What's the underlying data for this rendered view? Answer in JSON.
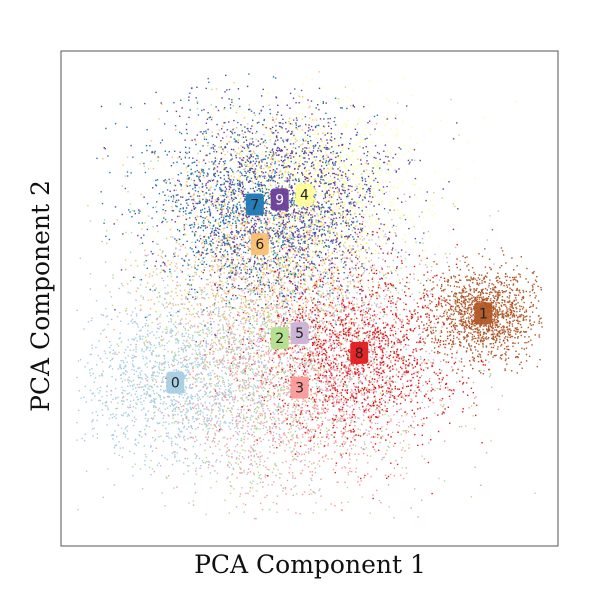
{
  "chart_data": {
    "type": "scatter",
    "title": "",
    "xlabel": "PCA Component 1",
    "ylabel": "PCA Component 2",
    "xlim": [
      0,
      1
    ],
    "ylim": [
      0,
      1
    ],
    "xticks": [],
    "yticks": [],
    "grid": false,
    "legend": "none",
    "clusters": [
      {
        "label": "0",
        "center": [
          0.23,
          0.33
        ],
        "spread": [
          0.1,
          0.085
        ],
        "color": "#a6cee3",
        "text_color": "#222222"
      },
      {
        "label": "1",
        "center": [
          0.85,
          0.47
        ],
        "spread": [
          0.055,
          0.045
        ],
        "color": "#b15928",
        "text_color": "#222222"
      },
      {
        "label": "2",
        "center": [
          0.44,
          0.42
        ],
        "spread": [
          0.15,
          0.17
        ],
        "color": "#b2df8a",
        "text_color": "#222222"
      },
      {
        "label": "3",
        "center": [
          0.48,
          0.32
        ],
        "spread": [
          0.13,
          0.11
        ],
        "color": "#fb9a99",
        "text_color": "#222222"
      },
      {
        "label": "4",
        "center": [
          0.49,
          0.71
        ],
        "spread": [
          0.11,
          0.09
        ],
        "color": "#ffff99",
        "text_color": "#222222"
      },
      {
        "label": "5",
        "center": [
          0.48,
          0.43
        ],
        "spread": [
          0.14,
          0.13
        ],
        "color": "#cab2d6",
        "text_color": "#222222"
      },
      {
        "label": "6",
        "center": [
          0.4,
          0.61
        ],
        "spread": [
          0.11,
          0.12
        ],
        "color": "#fdbf6f",
        "text_color": "#222222"
      },
      {
        "label": "7",
        "center": [
          0.39,
          0.69
        ],
        "spread": [
          0.11,
          0.1
        ],
        "color": "#1f78b4",
        "text_color": "#222222"
      },
      {
        "label": "8",
        "center": [
          0.6,
          0.39
        ],
        "spread": [
          0.1,
          0.09
        ],
        "color": "#e31a1c",
        "text_color": "#222222"
      },
      {
        "label": "9",
        "center": [
          0.44,
          0.7
        ],
        "spread": [
          0.12,
          0.1
        ],
        "color": "#6a3d9a",
        "text_color": "#ffffff"
      }
    ]
  }
}
